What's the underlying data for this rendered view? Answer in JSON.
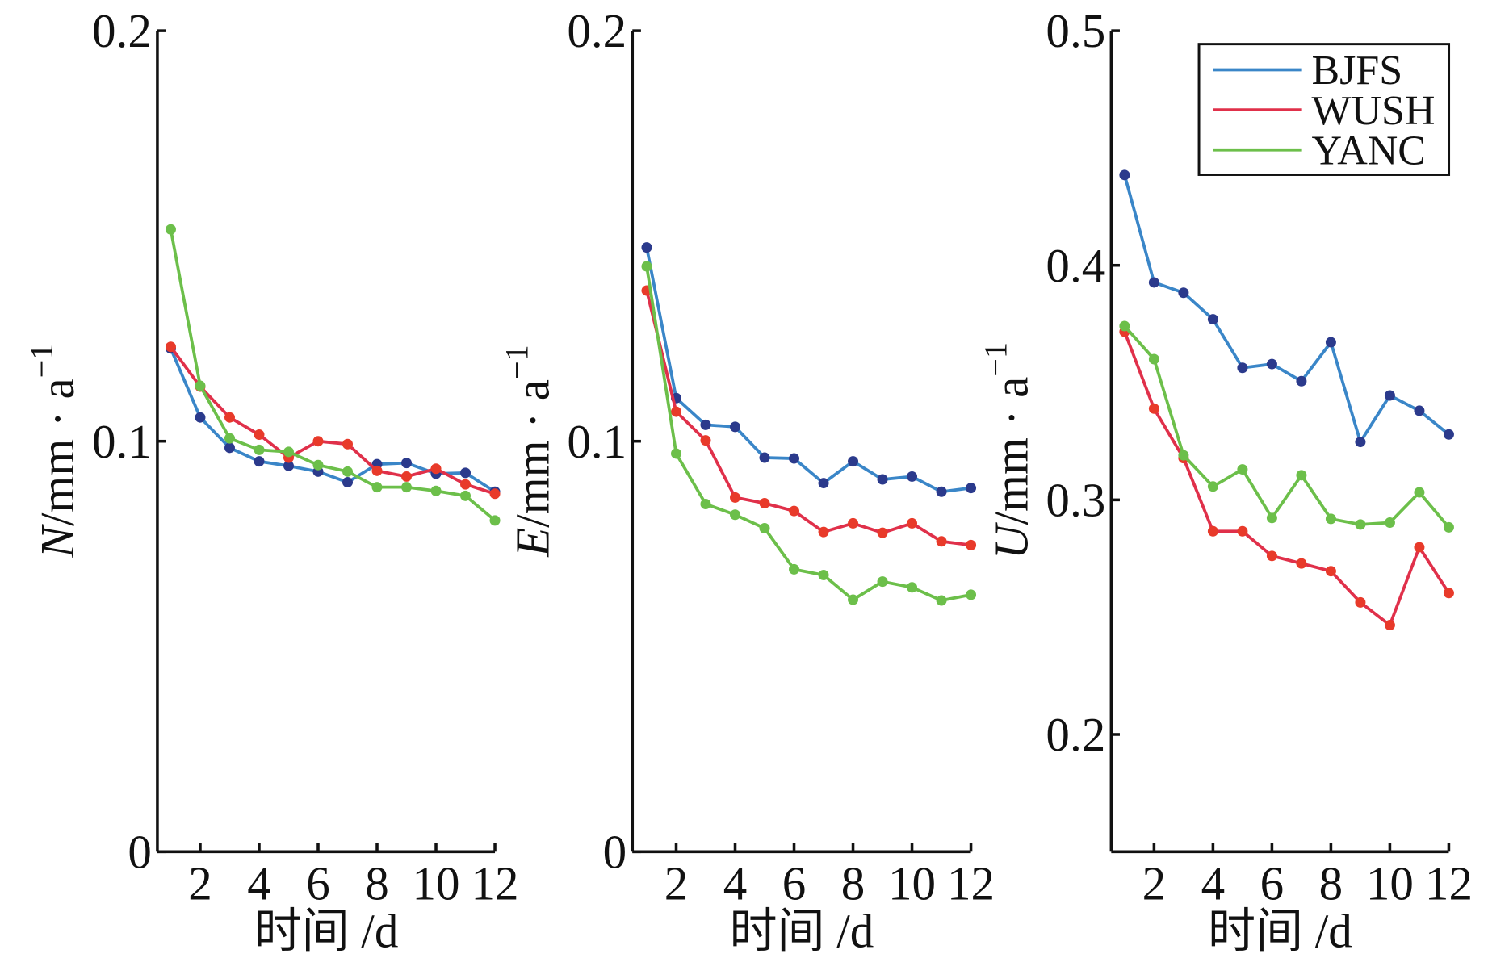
{
  "chart_data": [
    {
      "type": "line",
      "ylabel": {
        "var": "N",
        "unit": "/mm · a",
        "sup": "−1"
      },
      "xlabel": "时间 /d",
      "ylim": [
        0,
        0.2
      ],
      "yticks": [
        0,
        0.1,
        0.2
      ],
      "ytick_labels": [
        "0",
        "0.1",
        "0.2"
      ],
      "xlim": [
        1,
        12
      ],
      "xticks": [
        2,
        4,
        6,
        8,
        10,
        12
      ],
      "xtick_labels": [
        "2",
        "4",
        "6",
        "8",
        "10",
        "12"
      ],
      "x": [
        1,
        2,
        3,
        4,
        5,
        6,
        7,
        8,
        9,
        10,
        11,
        12
      ],
      "series": [
        {
          "name": "BJFS",
          "values": [
            0.1226,
            0.1058,
            0.0984,
            0.0951,
            0.094,
            0.0926,
            0.09,
            0.0944,
            0.0947,
            0.0921,
            0.0923,
            0.0877
          ]
        },
        {
          "name": "WUSH",
          "values": [
            0.123,
            0.1133,
            0.1058,
            0.1016,
            0.096,
            0.1,
            0.0993,
            0.0928,
            0.0914,
            0.0933,
            0.0895,
            0.0872
          ]
        },
        {
          "name": "YANC",
          "values": [
            0.1516,
            0.1135,
            0.1007,
            0.0979,
            0.0974,
            0.0942,
            0.0926,
            0.0888,
            0.0888,
            0.0879,
            0.0867,
            0.0807
          ]
        }
      ]
    },
    {
      "type": "line",
      "ylabel": {
        "var": "E",
        "unit": "/mm · a",
        "sup": "−1"
      },
      "xlabel": "时间 /d",
      "ylim": [
        0,
        0.2
      ],
      "yticks": [
        0,
        0.1,
        0.2
      ],
      "ytick_labels": [
        "0",
        "0.1",
        "0.2"
      ],
      "xlim": [
        1,
        12
      ],
      "xticks": [
        2,
        4,
        6,
        8,
        10,
        12
      ],
      "xtick_labels": [
        "2",
        "4",
        "6",
        "8",
        "10",
        "12"
      ],
      "x": [
        1,
        2,
        3,
        4,
        5,
        6,
        7,
        8,
        9,
        10,
        11,
        12
      ],
      "series": [
        {
          "name": "BJFS",
          "values": [
            0.1472,
            0.1105,
            0.104,
            0.1035,
            0.096,
            0.0958,
            0.0898,
            0.0951,
            0.0907,
            0.0914,
            0.0877,
            0.0886
          ]
        },
        {
          "name": "WUSH",
          "values": [
            0.1367,
            0.1072,
            0.1002,
            0.0863,
            0.0849,
            0.083,
            0.0779,
            0.08,
            0.0777,
            0.08,
            0.0756,
            0.0747
          ]
        },
        {
          "name": "YANC",
          "values": [
            0.1426,
            0.097,
            0.0847,
            0.0821,
            0.0788,
            0.0688,
            0.0674,
            0.0614,
            0.0658,
            0.0644,
            0.0612,
            0.0626
          ]
        }
      ]
    },
    {
      "type": "line",
      "ylabel": {
        "var": "U",
        "unit": "/mm · a",
        "sup": "−1"
      },
      "xlabel": "时间 /d",
      "ylim": [
        0.15,
        0.5
      ],
      "yticks": [
        0.2,
        0.3,
        0.4,
        0.5
      ],
      "ytick_labels": [
        "0.2",
        "0.3",
        "0.4",
        "0.5"
      ],
      "xlim": [
        1,
        12
      ],
      "xticks": [
        2,
        4,
        6,
        8,
        10,
        12
      ],
      "xtick_labels": [
        "2",
        "4",
        "6",
        "8",
        "10",
        "12"
      ],
      "x": [
        1,
        2,
        3,
        4,
        5,
        6,
        7,
        8,
        9,
        10,
        11,
        12
      ],
      "legend": {
        "placement": "top-right",
        "entries": [
          "BJFS",
          "WUSH",
          "YANC"
        ]
      },
      "series": [
        {
          "name": "BJFS",
          "values": [
            0.4385,
            0.3927,
            0.3883,
            0.377,
            0.3563,
            0.3579,
            0.3506,
            0.3672,
            0.3247,
            0.3445,
            0.338,
            0.3279
          ]
        },
        {
          "name": "WUSH",
          "values": [
            0.3717,
            0.3389,
            0.3178,
            0.2866,
            0.2866,
            0.2761,
            0.2729,
            0.2696,
            0.2563,
            0.2466,
            0.2798,
            0.2603
          ]
        },
        {
          "name": "YANC",
          "values": [
            0.3741,
            0.36,
            0.319,
            0.3057,
            0.313,
            0.2923,
            0.3105,
            0.2919,
            0.2895,
            0.2903,
            0.3032,
            0.2883
          ]
        }
      ]
    }
  ],
  "colors": {
    "BJFS": {
      "line": "#3a86c8",
      "marker": "#2b3a8c"
    },
    "WUSH": {
      "line": "#e0304a",
      "marker": "#e83a2a"
    },
    "YANC": {
      "line": "#6cbf4a",
      "marker": "#6cbf4a"
    }
  }
}
